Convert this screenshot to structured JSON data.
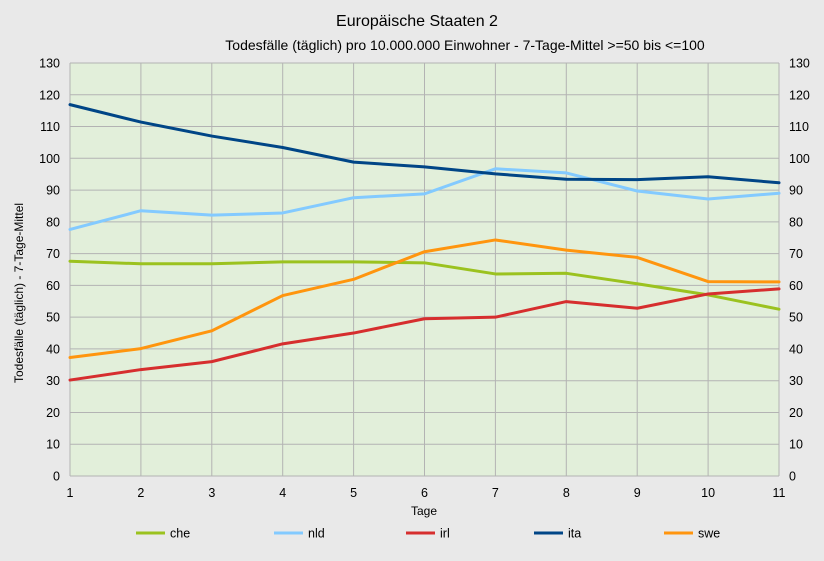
{
  "chart_data": {
    "type": "line",
    "title": "Europäische Staaten 2",
    "subtitle": "Todesfälle (täglich) pro 10.000.000 Einwohner - 7-Tage-Mittel >=50 bis <=100",
    "xlabel": "Tage",
    "ylabel": "Todesfälle (täglich) - 7-Tage-Mittel",
    "x": [
      1,
      2,
      3,
      4,
      5,
      6,
      7,
      8,
      9,
      10,
      11
    ],
    "x_tick_labels": [
      "1",
      "2",
      "3",
      "4",
      "5",
      "6",
      "7",
      "8",
      "9",
      "10",
      "11"
    ],
    "ylim": [
      0,
      130
    ],
    "y_tick_labels": [
      "0",
      "10",
      "20",
      "30",
      "40",
      "50",
      "60",
      "70",
      "80",
      "90",
      "100",
      "110",
      "120",
      "130"
    ],
    "secondary_y_axis": true,
    "grid": true,
    "plot_background": "#e2efda",
    "legend_position": "bottom",
    "series": [
      {
        "name": "che",
        "color": "#9bc21f",
        "values": [
          67.6,
          66.8,
          66.8,
          67.4,
          67.4,
          67.1,
          63.6,
          63.8,
          60.5,
          57.0,
          52.5
        ]
      },
      {
        "name": "nld",
        "color": "#83caff",
        "values": [
          77.6,
          83.5,
          82.1,
          82.8,
          87.6,
          88.8,
          96.7,
          95.4,
          89.7,
          87.2,
          89.0
        ]
      },
      {
        "name": "irl",
        "color": "#d62e2e",
        "values": [
          30.2,
          33.5,
          36.0,
          41.6,
          45.0,
          49.5,
          50.0,
          54.9,
          52.8,
          57.3,
          58.9
        ]
      },
      {
        "name": "ita",
        "color": "#004586",
        "values": [
          116.9,
          111.4,
          107.0,
          103.4,
          98.8,
          97.3,
          95.1,
          93.4,
          93.3,
          94.2,
          92.3
        ]
      },
      {
        "name": "swe",
        "color": "#ff950e",
        "values": [
          37.3,
          40.1,
          45.7,
          56.8,
          61.9,
          70.6,
          74.3,
          71.1,
          68.8,
          61.2,
          61.1
        ]
      }
    ]
  }
}
